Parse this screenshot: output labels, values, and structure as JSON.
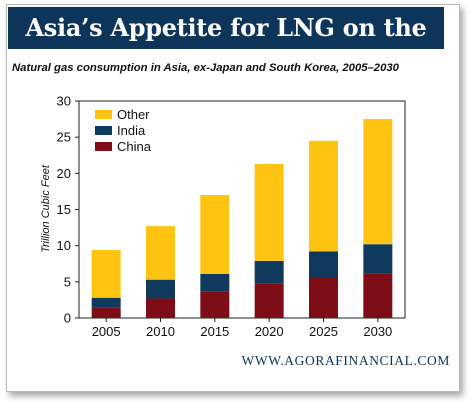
{
  "banner": {
    "title": "Asia’s Appetite for LNG on the Rise"
  },
  "footer": {
    "source": "WWW.AGORAFINANCIAL.COM"
  },
  "colors": {
    "banner_bg": "#0d3459",
    "other": "#ffc312",
    "india": "#0f3a5e",
    "china": "#7d0e18"
  },
  "chart_data": {
    "type": "bar",
    "stacked": true,
    "title": "Natural gas consumption in Asia, ex-Japan and South Korea, 2005–2030",
    "xlabel": "",
    "ylabel": "Trillion Cubic Feet",
    "ylim": [
      0,
      30
    ],
    "yticks": [
      "0",
      "5",
      "10",
      "15",
      "20",
      "25",
      "30"
    ],
    "categories": [
      "2005",
      "2010",
      "2015",
      "2020",
      "2025",
      "2030"
    ],
    "series": [
      {
        "name": "China",
        "color": "#7d0e18",
        "values": [
          1.5,
          2.7,
          3.7,
          4.8,
          5.6,
          6.2
        ]
      },
      {
        "name": "India",
        "color": "#0f3a5e",
        "values": [
          1.3,
          2.6,
          2.4,
          3.1,
          3.6,
          4.0
        ]
      },
      {
        "name": "Other",
        "color": "#ffc312",
        "values": [
          6.6,
          7.4,
          10.9,
          13.4,
          15.3,
          17.3
        ]
      }
    ],
    "legend": {
      "placement": "top-left",
      "order": [
        "Other",
        "India",
        "China"
      ]
    },
    "grid": false
  }
}
